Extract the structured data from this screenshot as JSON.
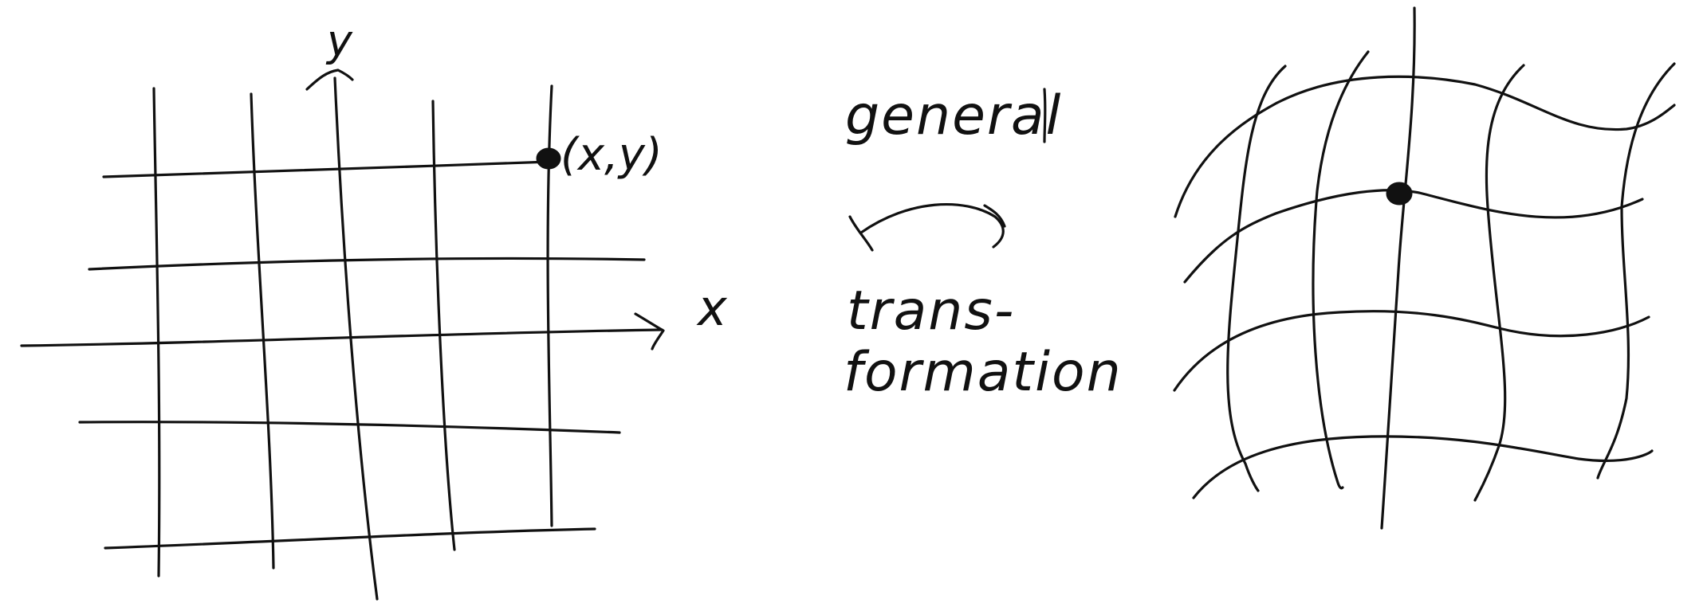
{
  "left_panel": {
    "axis_y_label": "y",
    "axis_x_label": "x",
    "point_label": "(x,y)"
  },
  "middle": {
    "caption_line1": "general",
    "caption_line2": "trans-",
    "caption_line3": "formation"
  },
  "colors": {
    "ink": "#111111",
    "background": "#ffffff"
  }
}
